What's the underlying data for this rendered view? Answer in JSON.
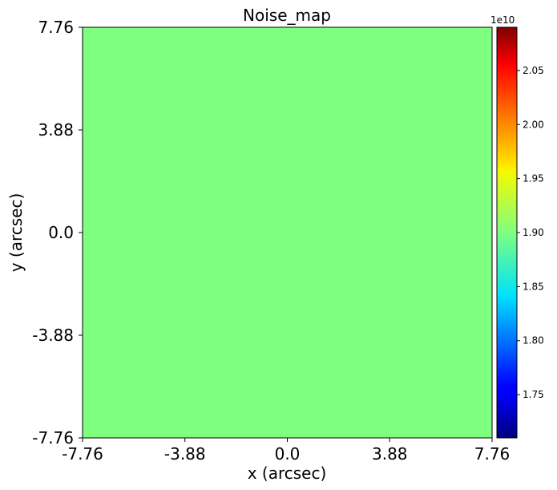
{
  "chart_data": {
    "type": "heatmap",
    "title": "Noise_map",
    "xlabel": "x (arcsec)",
    "ylabel": "y (arcsec)",
    "xlim": [
      -7.76,
      7.76
    ],
    "ylim": [
      -7.76,
      7.76
    ],
    "x_ticks": [
      "-7.76",
      "-3.88",
      "0.0",
      "3.88",
      "7.76"
    ],
    "y_ticks": [
      "-7.76",
      "-3.88",
      "0.0",
      "3.88",
      "7.76"
    ],
    "uniform_value": 19000000000.0,
    "fill_color": "#7fff7f",
    "colormap": "jet",
    "colorbar": {
      "range": [
        17100000000.0,
        20900000000.0
      ],
      "tick_values": [
        1.75,
        1.8,
        1.85,
        1.9,
        1.95,
        2.0,
        2.05
      ],
      "tick_labels": [
        "1.75",
        "1.80",
        "1.85",
        "1.90",
        "1.95",
        "2.00",
        "2.05"
      ],
      "offset_label": "1e10"
    }
  }
}
